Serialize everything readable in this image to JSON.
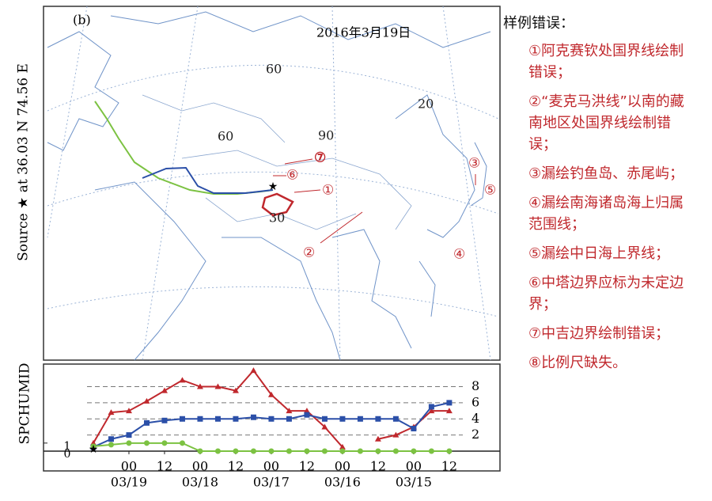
{
  "map": {
    "panel_label": "(b)",
    "date": "2016年3月19日",
    "source_label": "Source ★ at 36.03 N 74.56 E",
    "grid_labels": [
      "60",
      "20",
      "90",
      "60",
      "30"
    ],
    "error_markers": [
      "①",
      "②",
      "③",
      "④",
      "⑤",
      "⑥",
      "⑦"
    ]
  },
  "chart_data": {
    "type": "line",
    "y_label": "SPCHUMID",
    "x": [
      0,
      6,
      12,
      18,
      24,
      30,
      36,
      42,
      48,
      54,
      60,
      66,
      72,
      78,
      84,
      90,
      96,
      102,
      108,
      114,
      120
    ],
    "xlim": [
      -16.8,
      137.1
    ],
    "xticks": [
      {
        "value": 12,
        "label": "00"
      },
      {
        "value": 24,
        "label": "12"
      },
      {
        "value": 36,
        "label": "00"
      },
      {
        "value": 48,
        "label": "12"
      },
      {
        "value": 60,
        "label": "00"
      },
      {
        "value": 72,
        "label": "12"
      },
      {
        "value": 84,
        "label": "00"
      },
      {
        "value": 96,
        "label": "12"
      },
      {
        "value": 108,
        "label": "00"
      },
      {
        "value": 120,
        "label": "12"
      }
    ],
    "date_labels": [
      {
        "value": 12,
        "label": "03/19"
      },
      {
        "value": 36,
        "label": "03/18"
      },
      {
        "value": 60,
        "label": "03/17"
      },
      {
        "value": 84,
        "label": "03/16"
      },
      {
        "value": 108,
        "label": "03/15"
      }
    ],
    "ylim": [
      0,
      10.8
    ],
    "yticks": [
      0,
      1
    ],
    "y2lim": [
      0,
      10.8
    ],
    "y2ticks": [
      2,
      4,
      6,
      8
    ],
    "grid": true,
    "series": [
      {
        "color": "#c0282d",
        "marker": "triangle",
        "values": [
          1,
          4.8,
          5,
          6.2,
          7.5,
          8.8,
          8,
          8,
          7.5,
          10,
          7,
          5,
          5,
          3,
          0.5,
          null,
          1.5,
          2,
          3,
          5,
          5
        ]
      },
      {
        "color": "#2b4fa8",
        "marker": "square",
        "values": [
          0.5,
          1.5,
          2,
          3.5,
          3.8,
          4,
          4,
          4,
          4,
          4.2,
          4,
          4,
          4.5,
          4,
          4,
          4,
          4,
          4,
          2.8,
          5.5,
          6
        ]
      },
      {
        "color": "#7cc242",
        "marker": "circle",
        "values": [
          0.6,
          0.8,
          1,
          1,
          1,
          1,
          0,
          0,
          0,
          0,
          0,
          0,
          0,
          0,
          0,
          0,
          0,
          0,
          0,
          0,
          0
        ]
      }
    ]
  },
  "notes": {
    "title": "样例错误：",
    "items": [
      "①阿克赛钦处国界线绘制错误；",
      "②“麦克马洪线”以南的藏南地区处国界线绘制错误；",
      "③漏绘钓鱼岛、赤尾屿；",
      "④漏绘南海诸岛海上归属范围线；",
      "⑤漏绘中日海上界线；",
      "⑥中塔边界应标为未定边界；",
      "⑦中吉边界绘制错误；",
      "⑧比例尺缺失。"
    ]
  }
}
